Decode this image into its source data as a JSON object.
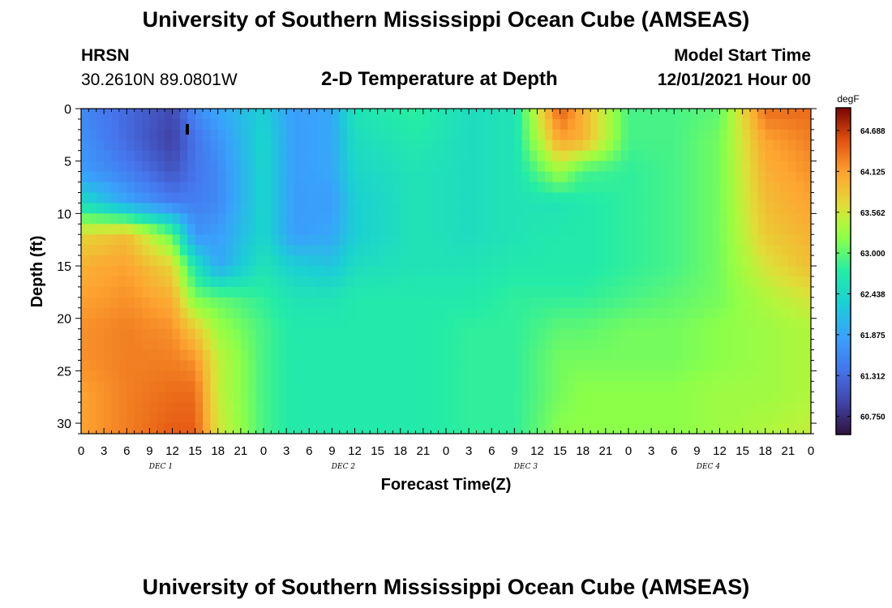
{
  "header": {
    "title": "University of Southern Mississippi Ocean Cube (AMSEAS)",
    "station": "HRSN",
    "coords": "30.2610N  89.0801W",
    "plot_title": "2-D Temperature at Depth",
    "model_start_label": "Model Start Time",
    "model_start_value": "12/01/2021 Hour 00"
  },
  "footer": {
    "title": "University of Southern Mississippi Ocean Cube (AMSEAS)"
  },
  "chart_data": {
    "type": "heatmap",
    "title": "2-D Temperature at Depth",
    "xlabel": "Forecast Time(Z)",
    "ylabel": "Depth (ft)",
    "x_ticks": [
      "0",
      "3",
      "6",
      "9",
      "12",
      "15",
      "18",
      "21",
      "0",
      "3",
      "6",
      "9",
      "12",
      "15",
      "18",
      "21",
      "0",
      "3",
      "6",
      "9",
      "12",
      "15",
      "18",
      "21",
      "0",
      "3",
      "6",
      "9",
      "12",
      "15",
      "18",
      "21",
      "0"
    ],
    "x_day_labels": [
      "DEC 1",
      "DEC 2",
      "DEC 3",
      "DEC 4"
    ],
    "y_ticks": [
      0,
      5,
      10,
      15,
      20,
      25,
      30
    ],
    "xlim_hours": [
      0,
      96
    ],
    "ylim_ft": [
      0,
      31
    ],
    "colorbar": {
      "unit": "degF",
      "ticks": [
        64.688,
        64.125,
        63.562,
        63.0,
        62.438,
        61.875,
        61.312,
        60.75
      ],
      "range": [
        60.5,
        65.0
      ]
    },
    "grid": {
      "depths_ft": [
        0,
        3,
        6,
        9,
        12,
        15,
        18,
        21,
        24,
        27,
        31
      ],
      "hours": [
        0,
        6,
        12,
        15,
        18,
        24,
        28,
        33,
        36,
        44,
        51,
        57,
        63,
        66,
        72,
        78,
        84,
        90,
        96
      ],
      "values": [
        [
          61.6,
          61.3,
          61.0,
          61.6,
          61.9,
          62.3,
          61.8,
          61.9,
          62.6,
          62.8,
          62.5,
          62.6,
          64.5,
          64.0,
          62.9,
          62.9,
          63.0,
          64.4,
          64.4
        ],
        [
          61.7,
          61.3,
          60.9,
          61.4,
          61.7,
          62.4,
          61.8,
          61.9,
          62.5,
          62.7,
          62.5,
          62.6,
          64.1,
          64.0,
          62.9,
          62.9,
          63.1,
          64.1,
          64.3
        ],
        [
          61.8,
          61.5,
          61.1,
          61.4,
          61.6,
          62.4,
          61.8,
          61.9,
          62.4,
          62.6,
          62.5,
          62.6,
          63.3,
          62.9,
          62.8,
          62.9,
          63.1,
          64.0,
          64.2
        ],
        [
          62.5,
          61.9,
          61.5,
          61.5,
          61.6,
          62.4,
          61.8,
          61.8,
          62.3,
          62.6,
          62.5,
          62.6,
          62.6,
          62.7,
          62.8,
          62.9,
          63.1,
          63.9,
          64.1
        ],
        [
          63.7,
          63.9,
          63.0,
          61.7,
          61.8,
          62.4,
          61.8,
          61.9,
          62.3,
          62.6,
          62.5,
          62.6,
          62.7,
          62.7,
          62.8,
          62.9,
          63.1,
          63.8,
          64.0
        ],
        [
          64.0,
          64.1,
          63.7,
          62.6,
          61.9,
          62.6,
          62.3,
          62.2,
          62.5,
          62.6,
          62.6,
          62.7,
          62.7,
          62.7,
          62.8,
          62.9,
          63.1,
          63.6,
          63.9
        ],
        [
          64.1,
          64.2,
          64.0,
          63.1,
          63.0,
          62.8,
          62.6,
          62.6,
          62.7,
          62.7,
          62.7,
          62.8,
          62.8,
          62.8,
          62.9,
          63.0,
          63.1,
          63.4,
          63.6
        ],
        [
          64.2,
          64.3,
          64.2,
          63.8,
          63.3,
          62.9,
          62.7,
          62.7,
          62.7,
          62.7,
          62.8,
          62.8,
          63.0,
          63.0,
          63.1,
          63.1,
          63.2,
          63.3,
          63.4
        ],
        [
          64.2,
          64.3,
          64.3,
          64.2,
          63.5,
          62.9,
          62.7,
          62.7,
          62.7,
          62.7,
          62.8,
          62.8,
          63.1,
          63.1,
          63.1,
          63.1,
          63.2,
          63.3,
          63.4
        ],
        [
          64.1,
          64.3,
          64.4,
          64.4,
          63.5,
          62.9,
          62.7,
          62.7,
          62.7,
          62.7,
          62.8,
          62.8,
          63.1,
          63.2,
          63.2,
          63.2,
          63.3,
          63.3,
          63.4
        ],
        [
          64.1,
          64.3,
          64.5,
          64.5,
          63.6,
          62.9,
          62.7,
          62.7,
          62.7,
          62.7,
          62.8,
          62.8,
          63.2,
          63.2,
          63.2,
          63.2,
          63.3,
          63.4,
          63.5
        ]
      ]
    }
  }
}
